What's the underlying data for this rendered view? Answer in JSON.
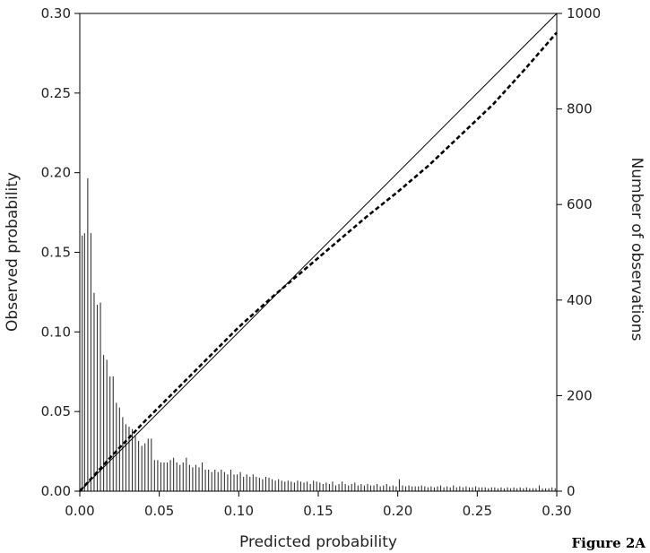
{
  "figure_label": "Figure 2A",
  "chart_data": {
    "type": "line",
    "title": "",
    "xlabel": "Predicted probability",
    "ylabel": "Observed probability",
    "y2label": "Number of observations",
    "xlim": [
      0,
      0.3
    ],
    "ylim": [
      0,
      0.3
    ],
    "y2lim": [
      0,
      1000
    ],
    "x_ticks": [
      "0.00",
      "0.05",
      "0.10",
      "0.15",
      "0.20",
      "0.25",
      "0.30"
    ],
    "y_ticks": [
      "0.00",
      "0.05",
      "0.10",
      "0.15",
      "0.20",
      "0.25",
      "0.30"
    ],
    "y2_ticks": [
      "0",
      "200",
      "400",
      "600",
      "800",
      "1000"
    ],
    "grid": false,
    "series": [
      {
        "style": "solid",
        "x": [
          0,
          0.3
        ],
        "y": [
          0,
          0.3
        ]
      },
      {
        "style": "dashed",
        "x": [
          0,
          0.02,
          0.04,
          0.06,
          0.08,
          0.1,
          0.12,
          0.14,
          0.16,
          0.18,
          0.2,
          0.22,
          0.24,
          0.26,
          0.28,
          0.3
        ],
        "y": [
          0,
          0.022,
          0.043,
          0.063,
          0.083,
          0.103,
          0.121,
          0.138,
          0.155,
          0.172,
          0.188,
          0.205,
          0.224,
          0.243,
          0.265,
          0.288
        ]
      }
    ],
    "histogram": {
      "axis": "right",
      "x": [
        0.0015,
        0.003,
        0.005,
        0.007,
        0.009,
        0.011,
        0.013,
        0.015,
        0.017,
        0.019,
        0.021,
        0.023,
        0.025,
        0.027,
        0.029,
        0.031,
        0.033,
        0.035,
        0.037,
        0.039,
        0.041,
        0.043,
        0.045,
        0.047,
        0.049,
        0.051,
        0.053,
        0.055,
        0.057,
        0.059,
        0.061,
        0.063,
        0.065,
        0.067,
        0.069,
        0.071,
        0.073,
        0.075,
        0.077,
        0.079,
        0.081,
        0.083,
        0.085,
        0.087,
        0.089,
        0.091,
        0.093,
        0.095,
        0.097,
        0.099,
        0.101,
        0.103,
        0.105,
        0.107,
        0.109,
        0.111,
        0.113,
        0.115,
        0.117,
        0.119,
        0.121,
        0.123,
        0.125,
        0.127,
        0.129,
        0.131,
        0.133,
        0.135,
        0.137,
        0.139,
        0.141,
        0.143,
        0.145,
        0.147,
        0.149,
        0.151,
        0.153,
        0.155,
        0.157,
        0.159,
        0.161,
        0.163,
        0.165,
        0.167,
        0.169,
        0.171,
        0.173,
        0.175,
        0.177,
        0.179,
        0.181,
        0.183,
        0.185,
        0.187,
        0.189,
        0.191,
        0.193,
        0.195,
        0.197,
        0.199,
        0.201,
        0.203,
        0.205,
        0.207,
        0.209,
        0.211,
        0.213,
        0.215,
        0.217,
        0.219,
        0.221,
        0.223,
        0.225,
        0.227,
        0.229,
        0.231,
        0.233,
        0.235,
        0.237,
        0.239,
        0.241,
        0.243,
        0.245,
        0.247,
        0.249,
        0.251,
        0.253,
        0.255,
        0.257,
        0.259,
        0.261,
        0.263,
        0.265,
        0.267,
        0.269,
        0.271,
        0.273,
        0.275,
        0.277,
        0.279,
        0.281,
        0.283,
        0.285,
        0.287,
        0.289,
        0.291,
        0.293,
        0.295,
        0.297,
        0.299
      ],
      "counts": [
        535,
        540,
        655,
        540,
        415,
        390,
        395,
        285,
        275,
        240,
        240,
        185,
        175,
        155,
        140,
        135,
        130,
        115,
        105,
        95,
        100,
        110,
        110,
        65,
        65,
        60,
        60,
        60,
        65,
        70,
        60,
        55,
        60,
        70,
        55,
        50,
        55,
        50,
        60,
        45,
        45,
        40,
        45,
        40,
        45,
        40,
        35,
        45,
        35,
        35,
        40,
        30,
        35,
        30,
        35,
        30,
        28,
        25,
        30,
        28,
        25,
        22,
        25,
        22,
        20,
        22,
        20,
        18,
        22,
        20,
        18,
        20,
        15,
        22,
        20,
        18,
        15,
        18,
        15,
        20,
        12,
        15,
        20,
        15,
        12,
        15,
        18,
        12,
        15,
        12,
        15,
        12,
        12,
        15,
        10,
        12,
        15,
        10,
        12,
        10,
        25,
        12,
        10,
        12,
        10,
        10,
        10,
        12,
        10,
        8,
        10,
        8,
        10,
        12,
        8,
        10,
        8,
        12,
        8,
        10,
        8,
        10,
        8,
        8,
        10,
        8,
        8,
        8,
        6,
        8,
        8,
        6,
        8,
        6,
        8,
        6,
        8,
        6,
        8,
        6,
        8,
        6,
        6,
        6,
        12,
        6,
        6,
        6,
        8,
        6
      ]
    }
  }
}
